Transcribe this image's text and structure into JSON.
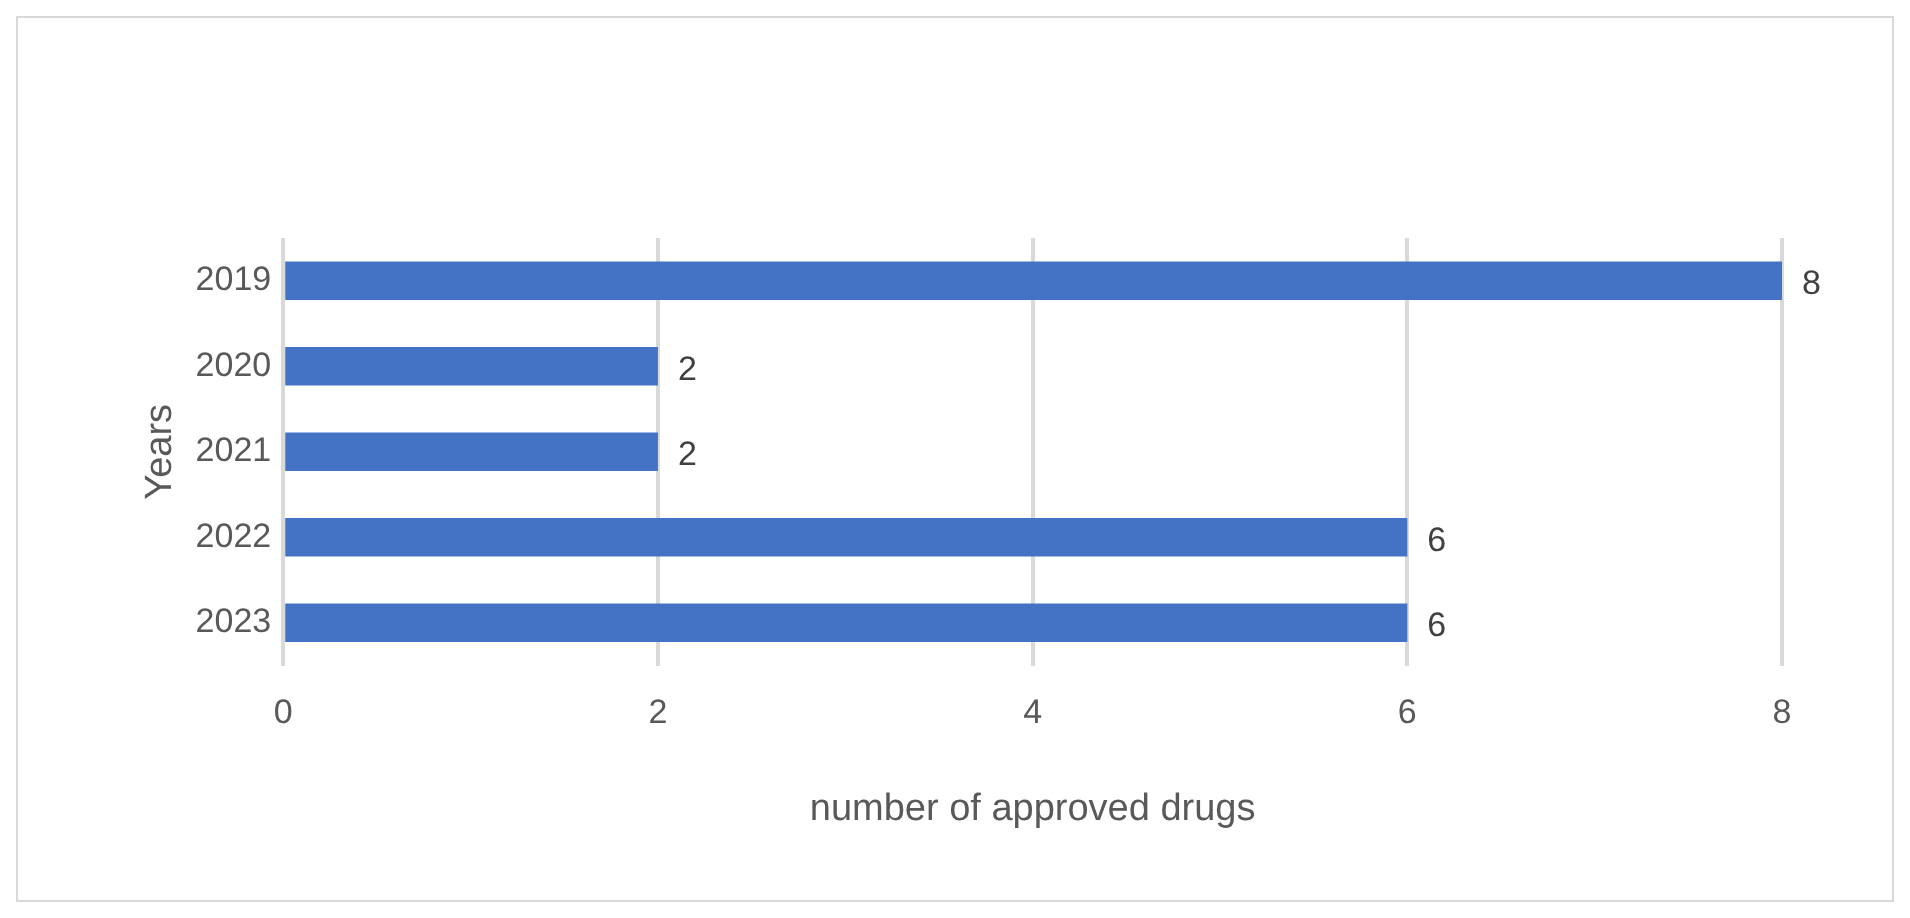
{
  "chart_data": {
    "type": "bar",
    "orientation": "horizontal",
    "categories": [
      "2019",
      "2020",
      "2021",
      "2022",
      "2023"
    ],
    "values": [
      8,
      2,
      2,
      6,
      6
    ],
    "color": "#4472c4",
    "xlim": [
      0,
      8
    ],
    "xticks": [
      0,
      2,
      4,
      6,
      8
    ],
    "grid": "x",
    "data_labels": true,
    "xlabel": "number of approved drugs",
    "ylabel": "Years"
  }
}
